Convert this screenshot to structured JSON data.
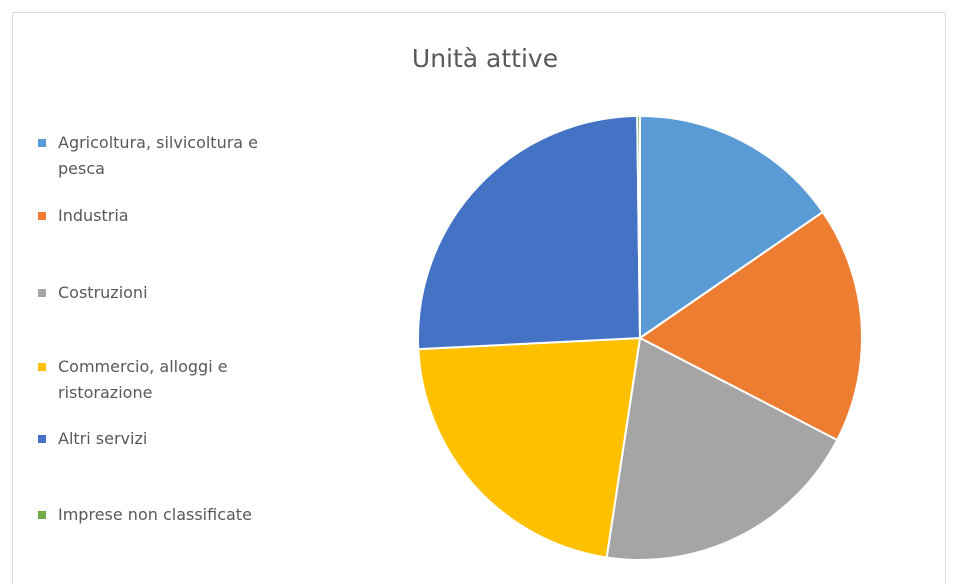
{
  "chart_data": {
    "type": "pie",
    "title": "Unità attive",
    "categories": [
      "Agricoltura, silvicoltura e pesca",
      "Industria",
      "Costruzioni",
      "Commercio, alloggi e ristorazione",
      "Altri servizi",
      "Imprese non classificate"
    ],
    "values": [
      15.4,
      17.2,
      19.8,
      21.8,
      25.6,
      0.2
    ],
    "colors": [
      "#5b9bd5",
      "#ed7d31",
      "#a5a5a5",
      "#ffc000",
      "#4472c4",
      "#70ad47"
    ],
    "legend": "left"
  }
}
